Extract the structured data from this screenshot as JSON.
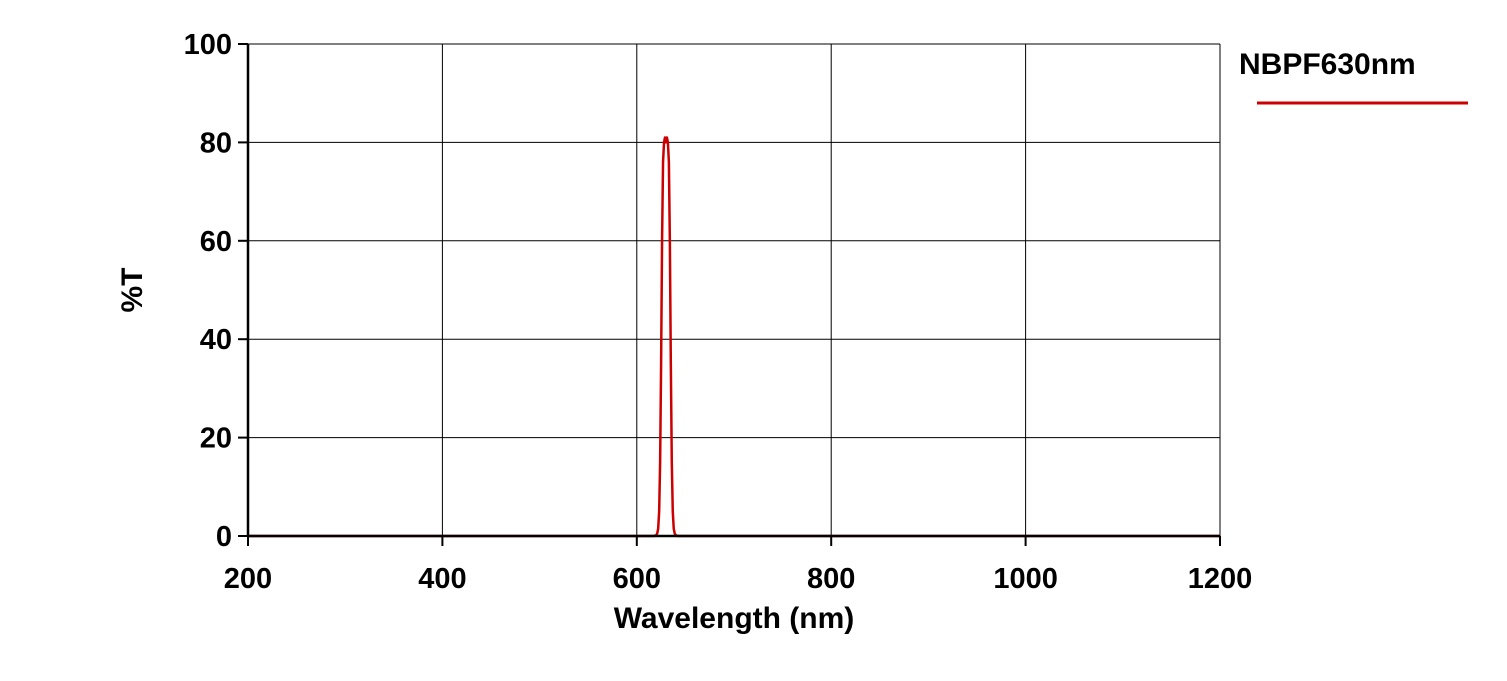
{
  "chart_data": {
    "type": "line",
    "xlabel": "Wavelength (nm)",
    "ylabel": "%T",
    "xlim": [
      200,
      1200
    ],
    "ylim": [
      0,
      100
    ],
    "xticks": [
      200,
      400,
      600,
      800,
      1000,
      1200
    ],
    "yticks": [
      0,
      20,
      40,
      60,
      80,
      100
    ],
    "grid": true,
    "legend_position": "top-right",
    "colors": {
      "series": "#cc0000",
      "grid": "#000000",
      "axis": "#000000"
    },
    "series": [
      {
        "name": "NBPF630nm",
        "color": "#cc0000",
        "x": [
          200,
          400,
          600,
          618,
          620,
          621,
          622,
          623,
          624,
          625,
          626,
          627,
          628,
          629,
          630,
          631,
          632,
          633,
          634,
          635,
          636,
          637,
          638,
          639,
          640,
          642,
          660,
          800,
          1000,
          1200
        ],
        "y": [
          0,
          0,
          0,
          0,
          0.2,
          0.5,
          1.5,
          5,
          15,
          35,
          60,
          76,
          80,
          81,
          80,
          81,
          80,
          76,
          60,
          35,
          15,
          5,
          1.5,
          0.5,
          0.2,
          0,
          0,
          0,
          0,
          0
        ]
      }
    ]
  }
}
